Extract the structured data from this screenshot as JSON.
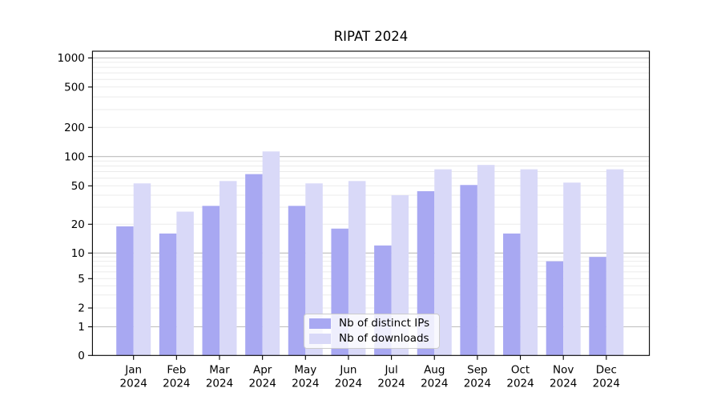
{
  "chart_data": {
    "type": "bar",
    "title": "RIPAT 2024",
    "xlabel": "",
    "ylabel": "",
    "yscale": "symlog",
    "grid": true,
    "legend_position": "lower center",
    "y_ticks": [
      0,
      1,
      2,
      5,
      10,
      20,
      50,
      100,
      200,
      500,
      1000
    ],
    "months": [
      "Jan",
      "Feb",
      "Mar",
      "Apr",
      "May",
      "Jun",
      "Jul",
      "Aug",
      "Sep",
      "Oct",
      "Nov",
      "Dec"
    ],
    "year": "2024",
    "series": [
      {
        "name": "Nb of distinct IPs",
        "key": "distinct-ips",
        "color": "#a8a8f2",
        "values": [
          19,
          16,
          31,
          66,
          31,
          18,
          12,
          44,
          51,
          16,
          8,
          9
        ]
      },
      {
        "name": "Nb of downloads",
        "key": "downloads",
        "color": "#d9d9f8",
        "values": [
          53,
          27,
          56,
          113,
          53,
          56,
          40,
          74,
          82,
          74,
          54,
          74
        ]
      }
    ],
    "colors": {
      "axis": "#000000",
      "grid_minor": "#ebebeb",
      "grid_major": "#bdbdbd",
      "text": "#000000",
      "legend_border": "#cccccc"
    }
  }
}
